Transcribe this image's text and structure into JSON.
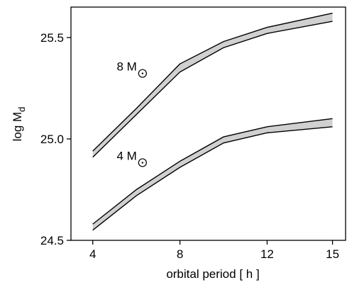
{
  "chart_data": {
    "type": "area",
    "xlabel": "orbital period [ h ]",
    "ylabel": "log M",
    "ylabel_subscript": "d",
    "xlim": [
      3,
      15.6
    ],
    "ylim": [
      24.5,
      25.65
    ],
    "x_ticks": [
      4,
      8,
      12,
      15
    ],
    "y_ticks": [
      24.5,
      25.0,
      25.5
    ],
    "x_tick_labels": [
      "4",
      "8",
      "12",
      "15"
    ],
    "y_tick_labels": [
      "24.5",
      "25.0",
      "25.5"
    ],
    "grid": false,
    "band_fill_color": "#d0d0d0",
    "line_color": "#000000",
    "series": [
      {
        "name": "8 M",
        "x": [
          4,
          6,
          8,
          10,
          12,
          15
        ],
        "lower": [
          24.91,
          25.12,
          25.33,
          25.45,
          25.52,
          25.58
        ],
        "upper": [
          24.94,
          25.15,
          25.37,
          25.48,
          25.55,
          25.62
        ]
      },
      {
        "name": "4 M",
        "x": [
          4,
          6,
          8,
          10,
          12,
          15
        ],
        "lower": [
          24.55,
          24.72,
          24.86,
          24.98,
          25.03,
          25.06
        ],
        "upper": [
          24.58,
          24.75,
          24.89,
          25.01,
          25.06,
          25.1
        ]
      }
    ]
  }
}
